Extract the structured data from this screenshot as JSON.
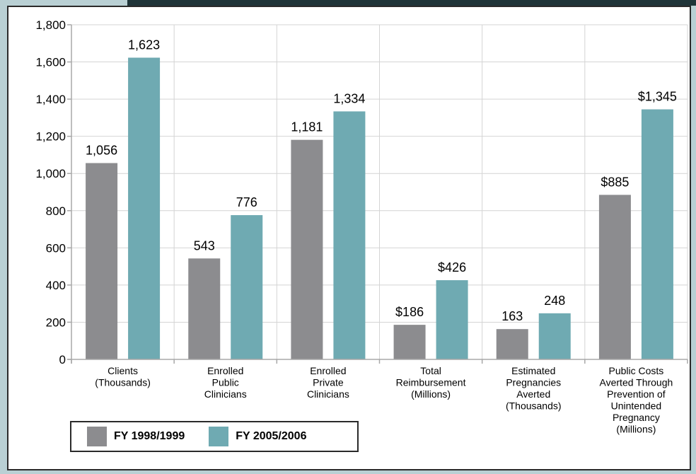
{
  "chart_data": {
    "type": "bar",
    "categories": [
      [
        "Clients",
        "(Thousands)"
      ],
      [
        "Enrolled",
        "Public",
        "Clinicians"
      ],
      [
        "Enrolled",
        "Private",
        "Clinicians"
      ],
      [
        "Total",
        "Reimbursement",
        "(Millions)"
      ],
      [
        "Estimated",
        "Pregnancies",
        "Averted",
        "(Thousands)"
      ],
      [
        "Public Costs",
        "Averted Through",
        "Prevention of",
        "Unintended",
        "Pregnancy",
        "(Millions)"
      ]
    ],
    "series": [
      {
        "name": "FY 1998/1999",
        "values": [
          1056,
          543,
          1181,
          186,
          163,
          885
        ],
        "labels": [
          "1,056",
          "543",
          "1,181",
          "$186",
          "163",
          "$885"
        ]
      },
      {
        "name": "FY 2005/2006",
        "values": [
          1623,
          776,
          1334,
          426,
          248,
          1345
        ],
        "labels": [
          "1,623",
          "776",
          "1,334",
          "$426",
          "248",
          "$1,345"
        ]
      }
    ],
    "ylim": [
      0,
      1800
    ],
    "yticks": [
      "0",
      "200",
      "400",
      "600",
      "800",
      "1,000",
      "1,200",
      "1,400",
      "1,600",
      "1,800"
    ],
    "grid": true,
    "legend_position": "bottom-left",
    "colors": {
      "series_1": "#8c8c8f",
      "series_2": "#6faab2",
      "grid": "#d4d4d4",
      "axis": "#a8a8a8"
    }
  }
}
